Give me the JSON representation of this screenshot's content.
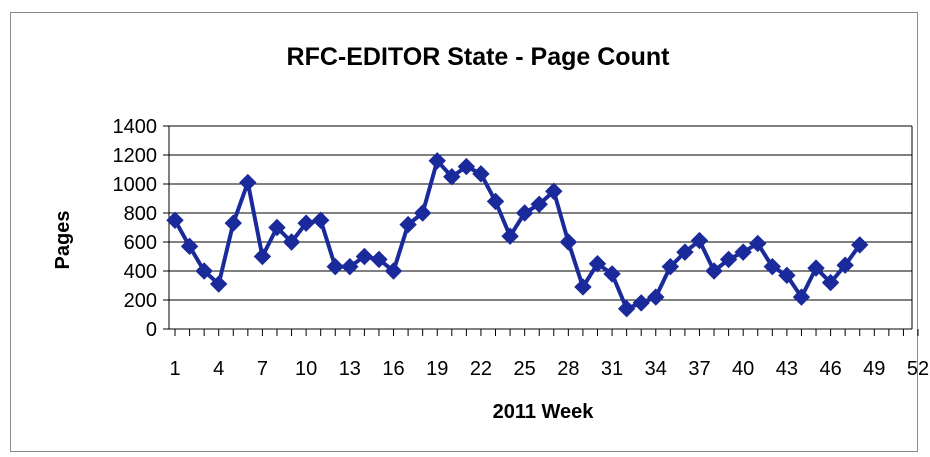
{
  "chart_data": {
    "type": "line",
    "title": "RFC-EDITOR State - Page Count",
    "xlabel": "2011 Week",
    "ylabel": "Pages",
    "xlim": [
      1,
      52
    ],
    "ylim": [
      0,
      1400
    ],
    "y_ticks": [
      "0",
      "200",
      "400",
      "600",
      "800",
      "1000",
      "1200",
      "1400"
    ],
    "x_tick_labels": [
      "1",
      "4",
      "7",
      "10",
      "13",
      "16",
      "19",
      "22",
      "25",
      "28",
      "31",
      "34",
      "37",
      "40",
      "43",
      "46",
      "49",
      "52"
    ],
    "grid": "horizontal",
    "legend": "none",
    "series_color": "#1a2a9a",
    "marker": "diamond",
    "series": [
      {
        "x": [
          1,
          2,
          3,
          4,
          5,
          6,
          7,
          8,
          9,
          10,
          11,
          12,
          13,
          14,
          15,
          16,
          17,
          18,
          19,
          20,
          21,
          22,
          23,
          24,
          25,
          26,
          27,
          28,
          29,
          30,
          31,
          32,
          33,
          34,
          35,
          36,
          37,
          38,
          39,
          40,
          41,
          42,
          43,
          44,
          45,
          46,
          47,
          48
        ],
        "values": [
          750,
          570,
          400,
          310,
          730,
          1010,
          500,
          700,
          600,
          730,
          750,
          430,
          430,
          500,
          480,
          400,
          720,
          800,
          1160,
          1050,
          1120,
          1070,
          880,
          640,
          800,
          860,
          950,
          600,
          290,
          450,
          380,
          140,
          180,
          220,
          430,
          530,
          610,
          400,
          480,
          530,
          590,
          430,
          370,
          220,
          420,
          320,
          440,
          580
        ]
      }
    ]
  }
}
